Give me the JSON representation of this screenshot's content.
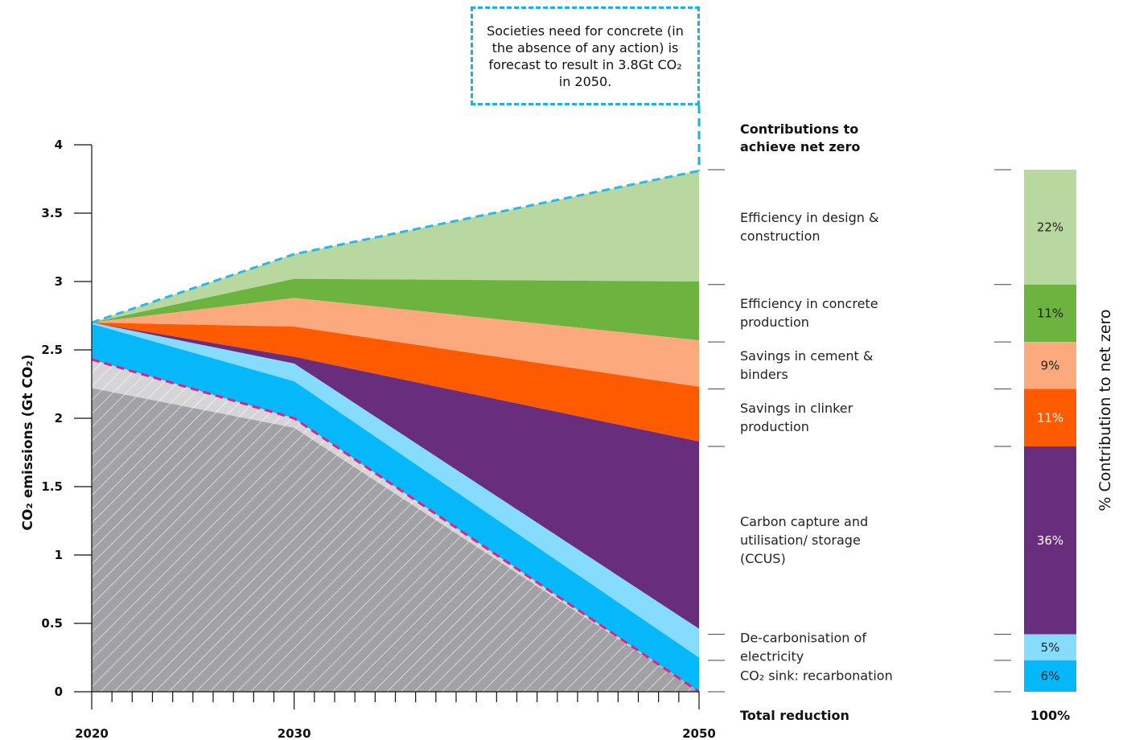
{
  "chart_data": {
    "type": "area",
    "ylabel": "CO₂ emissions (Gt CO₂)",
    "ylim": [
      0,
      4
    ],
    "yticks": [
      "0",
      "0.5",
      "1",
      "1.5",
      "2",
      "2.5",
      "3",
      "3.5",
      "4"
    ],
    "x": [
      2020,
      2030,
      2050
    ],
    "xtick_labels": [
      "2020",
      "2030",
      "2050"
    ],
    "callout": "Societies need for concrete (in the absence of any action) is forecast to result in 3.8Gt CO₂ in 2050.",
    "series": [
      {
        "name": "Efficiency in design & construction",
        "color": "#b8d8a0",
        "upper": [
          2.7,
          3.2,
          3.81
        ],
        "lower": [
          2.7,
          3.02,
          3.0
        ]
      },
      {
        "name": "Efficiency in concrete production",
        "color": "#6db33f",
        "upper": [
          2.7,
          3.02,
          3.0
        ],
        "lower": [
          2.7,
          2.88,
          2.57
        ]
      },
      {
        "name": "Savings in cement & binders",
        "color": "#fca97e",
        "upper": [
          2.7,
          2.88,
          2.57
        ],
        "lower": [
          2.7,
          2.67,
          2.23
        ]
      },
      {
        "name": "Savings in clinker production",
        "color": "#fe5a00",
        "upper": [
          2.7,
          2.67,
          2.23
        ],
        "lower": [
          2.7,
          2.45,
          1.83
        ]
      },
      {
        "name": "Carbon capture and utilisation/ storage (CCUS)",
        "color": "#682e7d",
        "upper": [
          2.7,
          2.45,
          1.83
        ],
        "lower": [
          2.7,
          2.4,
          0.46
        ]
      },
      {
        "name": "De-carbonisation of electricity",
        "color": "#85dcff",
        "upper": [
          2.7,
          2.4,
          0.46
        ],
        "lower": [
          2.69,
          2.27,
          0.25
        ]
      },
      {
        "name": "CO₂ sink: recarbonation",
        "color": "#04b8f9",
        "upper": [
          2.69,
          2.27,
          0.25
        ],
        "lower": [
          2.43,
          2.0,
          0.0
        ]
      }
    ],
    "hatched_bands": [
      {
        "color": "#d5d5d7",
        "upper": [
          2.43,
          2.0,
          0.0
        ],
        "lower": [
          2.22,
          1.93,
          0.0
        ]
      },
      {
        "color": "#a2a2a6",
        "upper": [
          2.22,
          1.93,
          0.0
        ],
        "lower": [
          0,
          0,
          0
        ]
      }
    ],
    "reference_lines": [
      {
        "color": "#2ab7ea",
        "values": [
          2.7,
          3.2,
          3.81
        ]
      },
      {
        "color": "#e0218a",
        "values": [
          2.43,
          2.0,
          0.0
        ]
      }
    ],
    "contributions": {
      "header": "Contributions to achieve net zero",
      "axis_label": "% Contribution to net zero",
      "total_label": "Total reduction",
      "total_value": "100%",
      "items": [
        {
          "label": "Efficiency in design & construction",
          "pct": "22%",
          "value": 22,
          "color": "#b8d8a0"
        },
        {
          "label": "Efficiency in concrete production",
          "pct": "11%",
          "value": 11,
          "color": "#6db33f"
        },
        {
          "label": "Savings in cement & binders",
          "pct": "9%",
          "value": 9,
          "color": "#fca97e"
        },
        {
          "label": "Savings in clinker production",
          "pct": "11%",
          "value": 11,
          "color": "#fe5a00"
        },
        {
          "label": "Carbon capture and utilisation/ storage (CCUS)",
          "pct": "36%",
          "value": 36,
          "color": "#682e7d"
        },
        {
          "label": "De-carbonisation of electricity",
          "pct": "5%",
          "value": 5,
          "color": "#85dcff"
        },
        {
          "label": "CO₂ sink: recarbonation",
          "pct": "6%",
          "value": 6,
          "color": "#04b8f9"
        }
      ]
    }
  }
}
